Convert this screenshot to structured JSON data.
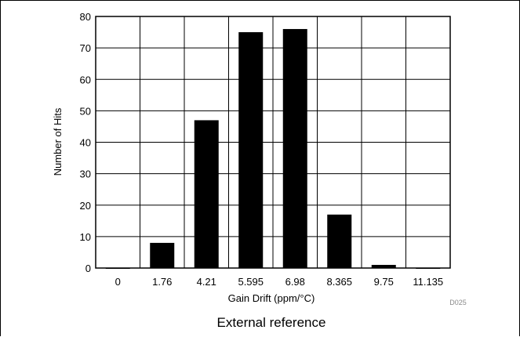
{
  "chart_data": {
    "type": "bar",
    "categories": [
      "0",
      "1.76",
      "4.21",
      "5.595",
      "6.98",
      "8.365",
      "9.75",
      "11.135"
    ],
    "values": [
      0,
      8,
      47,
      75,
      76,
      17,
      1,
      0
    ],
    "xlabel": "Gain Drift (ppm/°C)",
    "ylabel": "Number of Hits",
    "ylim": [
      0,
      80
    ],
    "yticks": [
      0,
      10,
      20,
      30,
      40,
      50,
      60,
      70,
      80
    ],
    "grid": true,
    "bar_color": "#000000",
    "figure_code": "D025",
    "caption": "External reference"
  }
}
